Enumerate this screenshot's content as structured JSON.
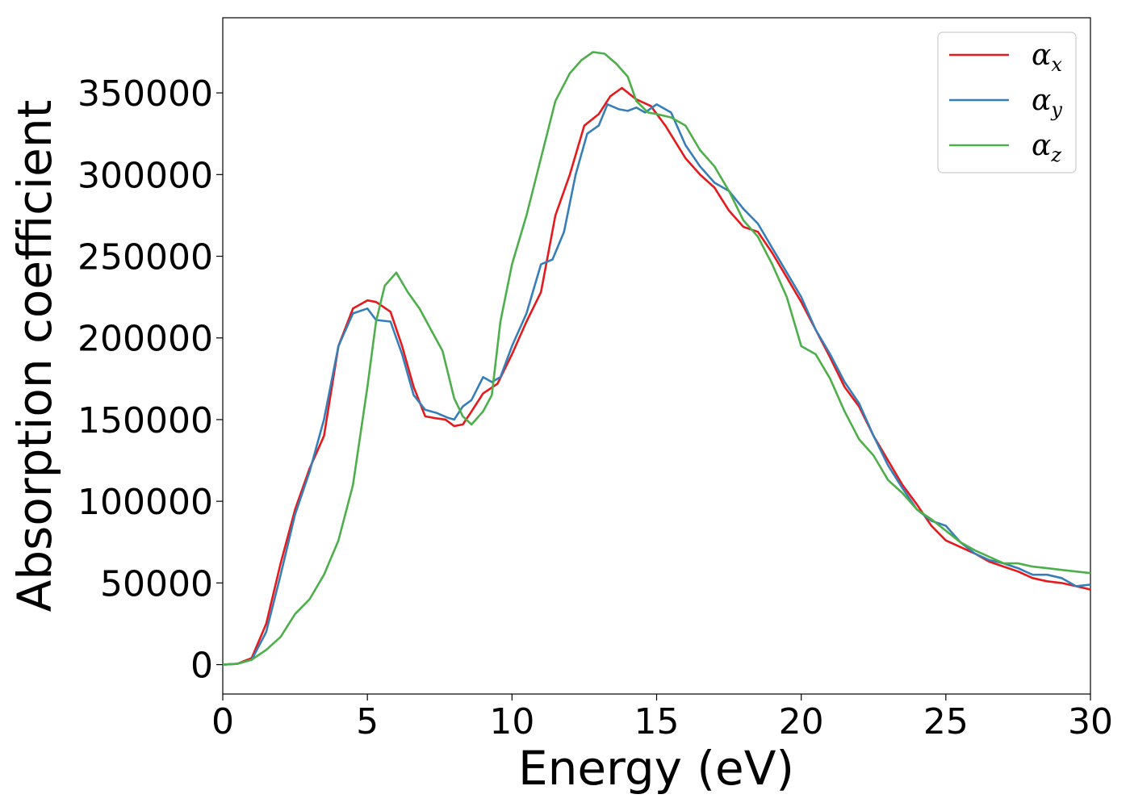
{
  "chart_data": {
    "type": "line",
    "title": "",
    "xlabel": "Energy (eV)",
    "ylabel": "Absorption coefficient",
    "xlim": [
      0,
      30
    ],
    "ylim": [
      -18000,
      396000
    ],
    "xticks": [
      0,
      5,
      10,
      15,
      20,
      25,
      30
    ],
    "yticks": [
      0,
      50000,
      100000,
      150000,
      200000,
      250000,
      300000,
      350000
    ],
    "grid": false,
    "legend_position": "top-right",
    "series": [
      {
        "name": "α",
        "subscript": "x",
        "color": "#e41a1c",
        "x": [
          0,
          0.5,
          1.0,
          1.5,
          2.0,
          2.5,
          3.0,
          3.5,
          4.0,
          4.5,
          5.0,
          5.3,
          5.8,
          6.2,
          6.6,
          7.0,
          7.3,
          7.7,
          8.0,
          8.3,
          8.6,
          9.0,
          9.5,
          10.0,
          10.5,
          11.0,
          11.5,
          12.0,
          12.5,
          13.0,
          13.4,
          13.8,
          14.3,
          14.8,
          15.3,
          16.0,
          16.5,
          17.0,
          17.5,
          18.0,
          18.5,
          19.0,
          19.5,
          20.0,
          20.5,
          21.0,
          21.5,
          22.0,
          22.5,
          23.0,
          23.5,
          24.0,
          24.5,
          25.0,
          25.5,
          26.0,
          26.5,
          27.0,
          27.5,
          28.0,
          28.5,
          29.0,
          29.5,
          30.0
        ],
        "y": [
          0,
          500,
          4000,
          25000,
          62000,
          95000,
          120000,
          140000,
          195000,
          218000,
          223000,
          222000,
          216000,
          195000,
          170000,
          152000,
          151000,
          150000,
          146000,
          147000,
          155000,
          166000,
          172000,
          190000,
          210000,
          228000,
          275000,
          300000,
          330000,
          337000,
          348000,
          353000,
          346000,
          342000,
          330000,
          310000,
          300000,
          292000,
          278000,
          268000,
          265000,
          252000,
          237000,
          222000,
          205000,
          188000,
          170000,
          158000,
          140000,
          125000,
          110000,
          98000,
          85000,
          76000,
          72000,
          68000,
          63000,
          60000,
          57000,
          53000,
          51000,
          50000,
          48000,
          46000
        ]
      },
      {
        "name": "α",
        "subscript": "y",
        "color": "#377eb8",
        "x": [
          0,
          0.5,
          1.0,
          1.5,
          2.0,
          2.5,
          3.0,
          3.5,
          4.0,
          4.5,
          5.0,
          5.3,
          5.8,
          6.2,
          6.6,
          7.0,
          7.4,
          7.8,
          8.0,
          8.3,
          8.6,
          9.0,
          9.3,
          9.6,
          10.0,
          10.5,
          11.0,
          11.4,
          11.8,
          12.2,
          12.6,
          13.0,
          13.3,
          13.7,
          14.0,
          14.3,
          14.6,
          15.0,
          15.5,
          16.0,
          16.5,
          17.0,
          17.5,
          18.0,
          18.5,
          19.0,
          19.5,
          20.0,
          20.5,
          21.0,
          21.5,
          22.0,
          22.5,
          23.0,
          23.5,
          24.0,
          24.5,
          25.0,
          25.5,
          26.0,
          26.5,
          27.0,
          27.5,
          28.0,
          28.5,
          29.0,
          29.5,
          30.0
        ],
        "y": [
          0,
          500,
          3000,
          20000,
          55000,
          92000,
          118000,
          150000,
          195000,
          215000,
          218000,
          211000,
          210000,
          190000,
          165000,
          156000,
          154000,
          151000,
          150000,
          158000,
          162000,
          176000,
          173000,
          176000,
          195000,
          215000,
          245000,
          248000,
          265000,
          300000,
          325000,
          330000,
          343000,
          340000,
          339000,
          341000,
          338000,
          343000,
          338000,
          318000,
          305000,
          295000,
          290000,
          279000,
          270000,
          255000,
          240000,
          225000,
          205000,
          190000,
          173000,
          160000,
          140000,
          122000,
          108000,
          95000,
          88000,
          85000,
          75000,
          68000,
          64000,
          62000,
          59000,
          55000,
          55000,
          53000,
          48000,
          49000
        ]
      },
      {
        "name": "α",
        "subscript": "z",
        "color": "#4daf4a",
        "x": [
          0,
          0.5,
          1.0,
          1.5,
          2.0,
          2.5,
          3.0,
          3.5,
          4.0,
          4.5,
          5.0,
          5.3,
          5.6,
          6.0,
          6.4,
          6.8,
          7.2,
          7.6,
          8.0,
          8.3,
          8.6,
          9.0,
          9.3,
          9.6,
          10.0,
          10.5,
          11.0,
          11.5,
          12.0,
          12.4,
          12.8,
          13.2,
          13.6,
          14.0,
          14.3,
          14.7,
          15.0,
          15.5,
          16.0,
          16.5,
          17.0,
          17.5,
          18.0,
          18.5,
          19.0,
          19.5,
          20.0,
          20.5,
          21.0,
          21.5,
          22.0,
          22.5,
          23.0,
          23.5,
          24.0,
          24.5,
          25.0,
          25.5,
          26.0,
          26.5,
          27.0,
          27.5,
          28.0,
          28.5,
          29.0,
          29.5,
          30.0
        ],
        "y": [
          0,
          500,
          3000,
          9000,
          17000,
          31000,
          40000,
          55000,
          76000,
          110000,
          170000,
          210000,
          232000,
          240000,
          228000,
          218000,
          205000,
          192000,
          163000,
          152000,
          147000,
          155000,
          165000,
          210000,
          245000,
          275000,
          310000,
          345000,
          362000,
          370000,
          375000,
          374000,
          368000,
          360000,
          345000,
          338000,
          337000,
          335000,
          330000,
          315000,
          305000,
          290000,
          272000,
          262000,
          245000,
          225000,
          195000,
          190000,
          175000,
          155000,
          138000,
          128000,
          113000,
          105000,
          95000,
          89000,
          82000,
          75000,
          70000,
          66000,
          62000,
          62000,
          60000,
          59000,
          58000,
          57000,
          56000
        ]
      }
    ]
  }
}
